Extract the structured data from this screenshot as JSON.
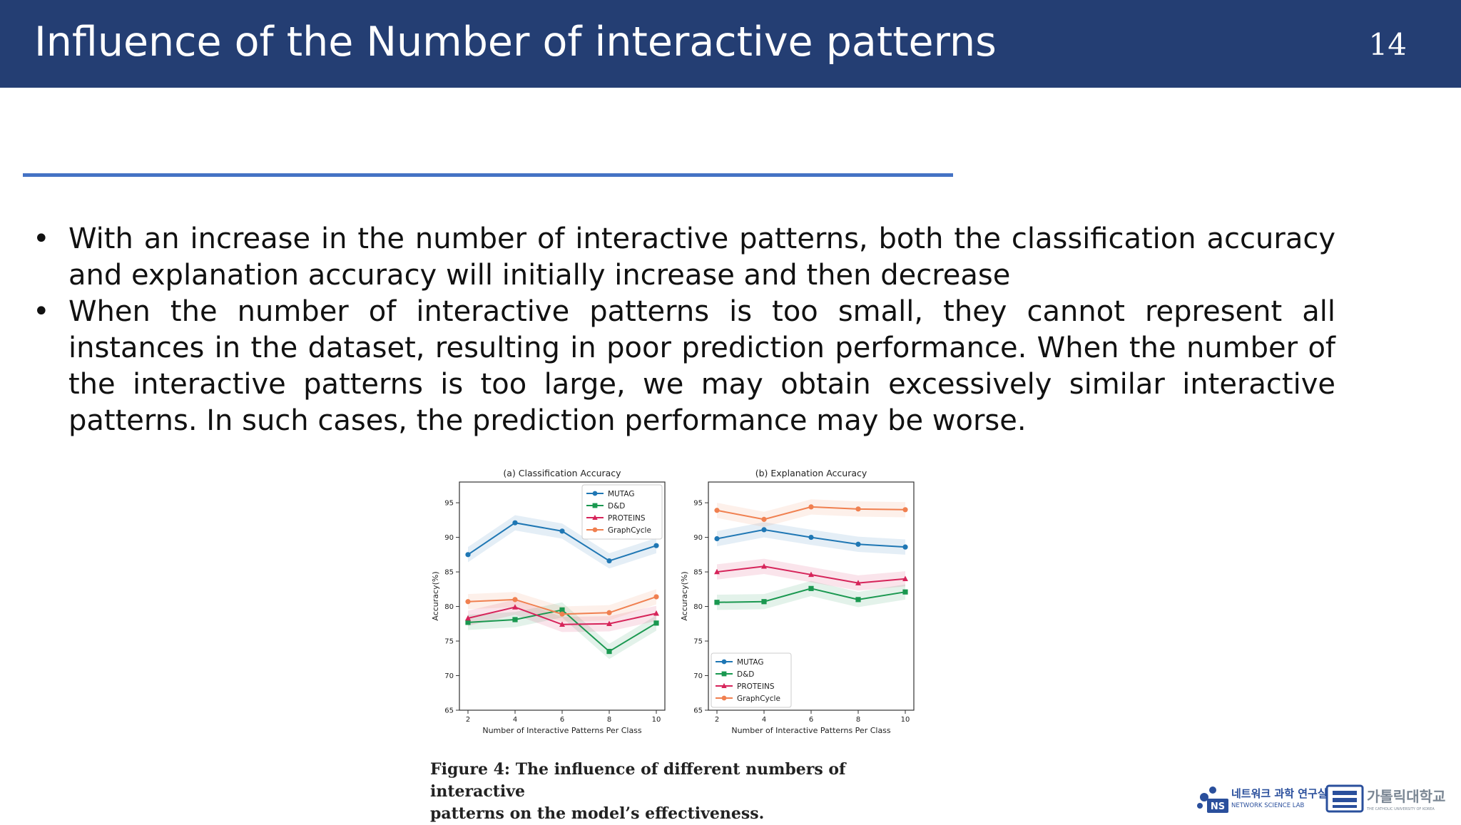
{
  "slide": {
    "title": "Influence of the Number of interactive patterns",
    "page_number": "14",
    "bullet_marker": "•",
    "bullets": [
      "With an increase in the number of interactive patterns, both the classification accuracy and explanation accuracy will initially increase and then decrease",
      "When the number of interactive patterns is too small, they cannot represent all instances in the dataset, resulting in poor prediction performance. When the number of the interactive patterns is too large, we may obtain excessively similar interactive patterns. In such cases, the prediction performance may be worse."
    ],
    "figure_caption_line1": "Figure 4: The influence of different numbers of interactive",
    "figure_caption_line2": "patterns on the model’s effectiveness.",
    "logo_left_korean": "네트워크 과학 연구실",
    "logo_left_english": "NETWORK SCIENCE LAB",
    "logo_left_mark": "NS",
    "logo_right_korean": "가톨릭대학교",
    "logo_right_english": "THE CATHOLIC UNIVERSITY OF KOREA",
    "colors": {
      "title_bar": "#243e73",
      "rule": "#4472c4"
    }
  },
  "chart_data": [
    {
      "type": "line",
      "title": "(a) Classification Accuracy",
      "xlabel": "Number of Interactive Patterns Per Class",
      "ylabel": "Accuracy(%)",
      "x": [
        2,
        4,
        6,
        8,
        10
      ],
      "ylim": [
        65,
        98
      ],
      "yticks": [
        65,
        70,
        75,
        80,
        85,
        90,
        95
      ],
      "legend_position": "top-right",
      "series": [
        {
          "name": "MUTAG",
          "color": "#1f77b4",
          "marker": "circle",
          "values": [
            87.5,
            92.1,
            90.9,
            86.6,
            88.8
          ]
        },
        {
          "name": "D&D",
          "color": "#1a9850",
          "marker": "square",
          "values": [
            77.7,
            78.1,
            79.5,
            73.5,
            77.6
          ]
        },
        {
          "name": "PROTEINS",
          "color": "#d6245a",
          "marker": "triangle",
          "values": [
            78.3,
            79.9,
            77.4,
            77.5,
            79.0
          ]
        },
        {
          "name": "GraphCycle",
          "color": "#f08050",
          "marker": "circle",
          "values": [
            80.7,
            81.0,
            78.9,
            79.1,
            81.4
          ]
        }
      ]
    },
    {
      "type": "line",
      "title": "(b) Explanation Accuracy",
      "xlabel": "Number of Interactive Patterns Per Class",
      "ylabel": "Accuracy(%)",
      "x": [
        2,
        4,
        6,
        8,
        10
      ],
      "ylim": [
        65,
        98
      ],
      "yticks": [
        65,
        70,
        75,
        80,
        85,
        90,
        95
      ],
      "legend_position": "bottom-left",
      "series": [
        {
          "name": "MUTAG",
          "color": "#1f77b4",
          "marker": "circle",
          "values": [
            89.8,
            91.1,
            90.0,
            89.0,
            88.6
          ]
        },
        {
          "name": "D&D",
          "color": "#1a9850",
          "marker": "square",
          "values": [
            80.6,
            80.7,
            82.6,
            81.0,
            82.1
          ]
        },
        {
          "name": "PROTEINS",
          "color": "#d6245a",
          "marker": "triangle",
          "values": [
            85.0,
            85.8,
            84.6,
            83.4,
            84.0
          ]
        },
        {
          "name": "GraphCycle",
          "color": "#f08050",
          "marker": "circle",
          "values": [
            93.9,
            92.6,
            94.4,
            94.1,
            94.0
          ]
        }
      ]
    }
  ]
}
